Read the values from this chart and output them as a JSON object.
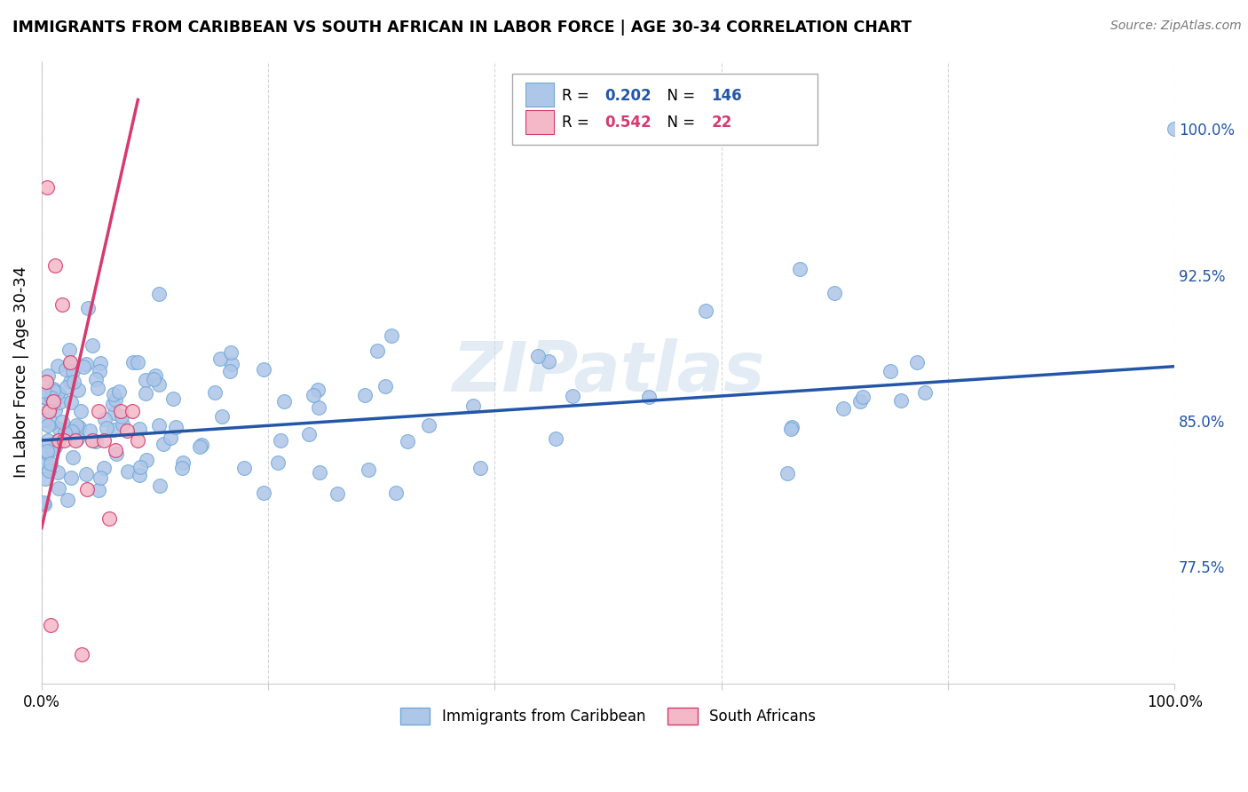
{
  "title": "IMMIGRANTS FROM CARIBBEAN VS SOUTH AFRICAN IN LABOR FORCE | AGE 30-34 CORRELATION CHART",
  "source": "Source: ZipAtlas.com",
  "ylabel": "In Labor Force | Age 30-34",
  "right_yticks": [
    0.775,
    0.85,
    0.925,
    1.0
  ],
  "right_ytick_labels": [
    "77.5%",
    "85.0%",
    "92.5%",
    "100.0%"
  ],
  "legend_blue_R": "0.202",
  "legend_blue_N": "146",
  "legend_pink_R": "0.542",
  "legend_pink_N": "22",
  "legend_blue_label": "Immigrants from Caribbean",
  "legend_pink_label": "South Africans",
  "blue_color": "#aec6e8",
  "blue_edge_color": "#6fa8d8",
  "blue_line_color": "#2356a8",
  "pink_color": "#f4b8c8",
  "pink_edge_color": "#d63a6e",
  "pink_line_color": "#d63a6e",
  "watermark": "ZIPatlas",
  "blue_line_y_start": 0.84,
  "blue_line_y_end": 0.878,
  "pink_line_x_end": 0.085,
  "pink_line_y_start": 0.795,
  "pink_line_y_end": 1.015,
  "xlim": [
    0.0,
    1.0
  ],
  "ylim": [
    0.715,
    1.035
  ],
  "figsize": [
    14.06,
    8.92
  ],
  "dpi": 100
}
